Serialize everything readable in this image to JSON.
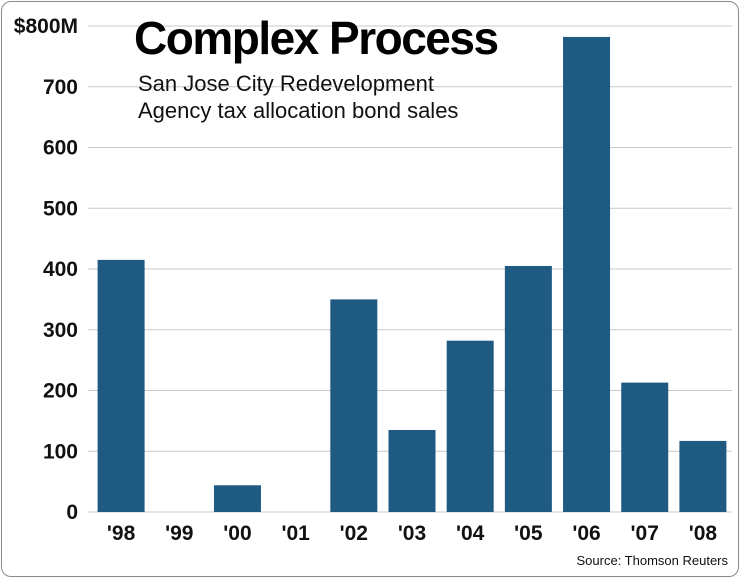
{
  "chart_data": {
    "type": "bar",
    "title": "Complex Process",
    "subtitle_lines": [
      "San Jose City Redevelopment",
      "Agency tax allocation bond sales"
    ],
    "source": "Source: Thomson Reuters",
    "categories": [
      "'98",
      "'99",
      "'00",
      "'01",
      "'02",
      "'03",
      "'04",
      "'05",
      "'06",
      "'07",
      "'08"
    ],
    "values": [
      415,
      0,
      44,
      0,
      350,
      135,
      282,
      405,
      782,
      213,
      117
    ],
    "ylim": [
      0,
      800
    ],
    "yticks": [
      0,
      100,
      200,
      300,
      400,
      500,
      600,
      700,
      800
    ],
    "ytick_labels": [
      "0",
      "100",
      "200",
      "300",
      "400",
      "500",
      "600",
      "700",
      "$800M"
    ],
    "grid": true,
    "bar_color": "#1f5a82"
  }
}
